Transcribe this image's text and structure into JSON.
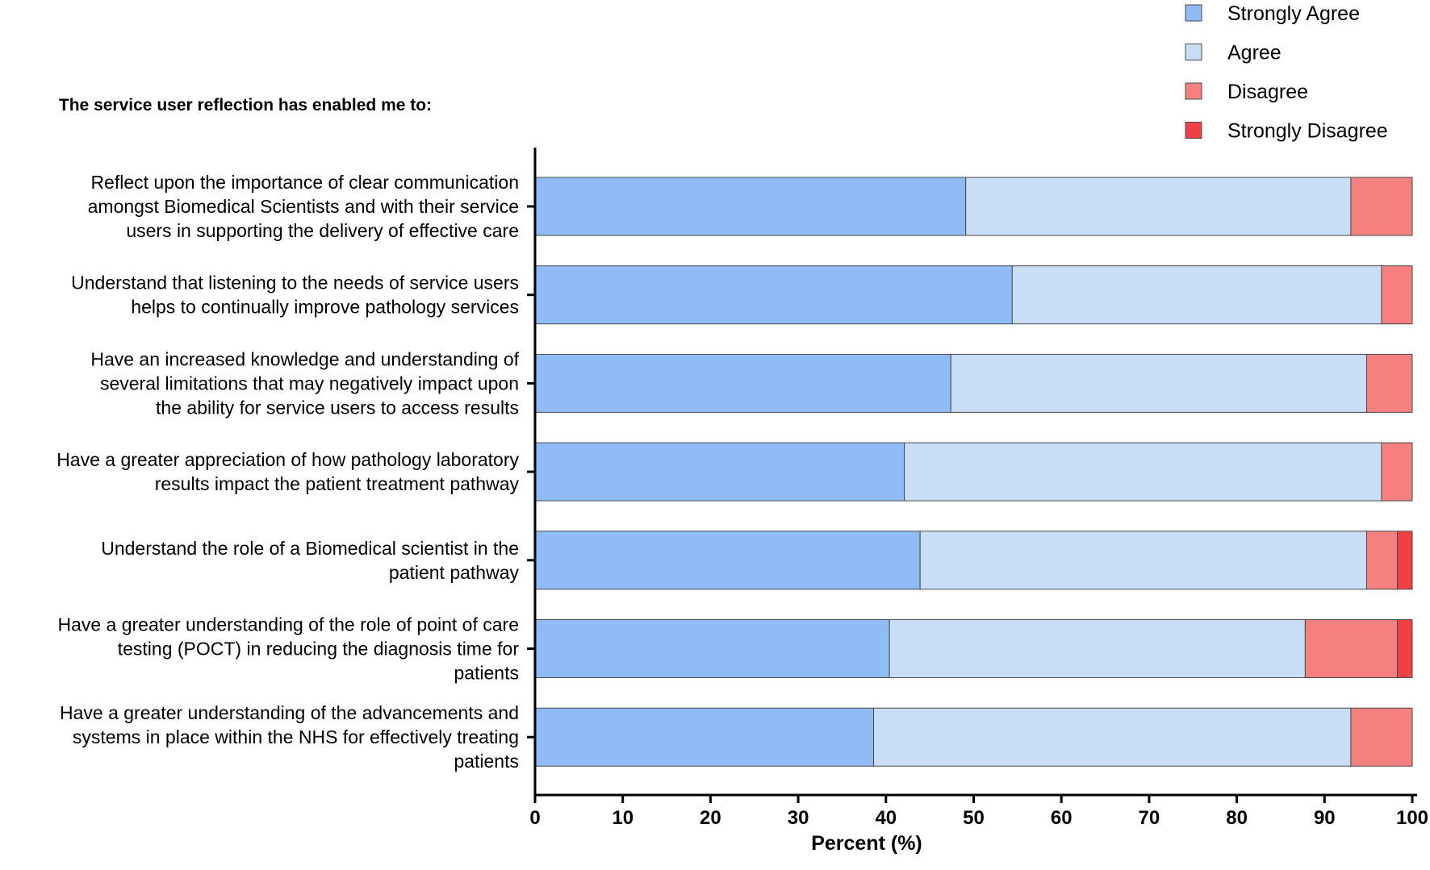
{
  "chart_data": {
    "type": "bar",
    "orientation": "horizontal",
    "stacked": true,
    "heading": "The service user reflection has enabled me to:",
    "xlabel": "Percent (%)",
    "xlim": [
      0,
      100
    ],
    "xticks": [
      0,
      10,
      20,
      30,
      40,
      50,
      60,
      70,
      80,
      90,
      100
    ],
    "grid": false,
    "legend_position": "top-right",
    "categories": [
      [
        "Reflect upon the importance of clear communication",
        "amongst Biomedical Scientists and with their service",
        "users in supporting the delivery of effective care"
      ],
      [
        "Understand that listening to the needs of service users",
        "helps to continually improve pathology services"
      ],
      [
        "Have an increased knowledge and understanding of",
        "several limitations that may negatively impact upon",
        "the ability for service users to access results"
      ],
      [
        "Have a greater appreciation of how pathology laboratory",
        "results impact the patient treatment pathway"
      ],
      [
        "Understand the role of a Biomedical scientist in the",
        "patient pathway"
      ],
      [
        "Have a greater understanding of the role of point of care",
        "testing (POCT) in reducing the diagnosis time for",
        "patients"
      ],
      [
        "Have a greater understanding of the advancements and",
        "systems in place within the NHS for effectively treating",
        "patients"
      ]
    ],
    "series": [
      {
        "name": "Strongly Agree",
        "color": "#8fbcf6",
        "values": [
          49.1,
          54.4,
          47.4,
          42.1,
          43.9,
          40.4,
          38.6
        ]
      },
      {
        "name": "Agree",
        "color": "#c9ddf6",
        "values": [
          43.9,
          42.1,
          47.4,
          54.4,
          50.9,
          47.4,
          54.4
        ]
      },
      {
        "name": "Disagree",
        "color": "#f48080",
        "values": [
          7.0,
          3.5,
          5.2,
          3.5,
          3.5,
          10.5,
          7.0
        ]
      },
      {
        "name": "Strongly Disagree",
        "color": "#ef4144",
        "values": [
          0,
          0,
          0,
          0,
          1.7,
          1.7,
          0
        ]
      }
    ]
  }
}
